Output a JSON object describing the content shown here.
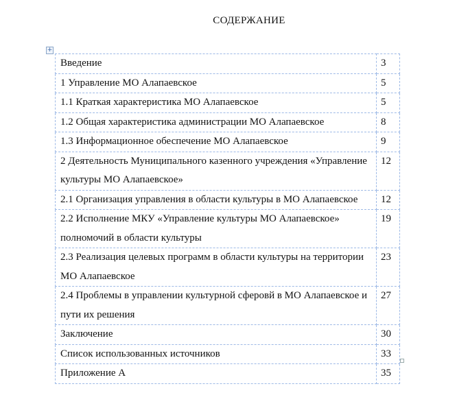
{
  "title": "СОДЕРЖАНИЕ",
  "toc": [
    {
      "text": "Введение",
      "page": "3"
    },
    {
      "text": "1 Управление МО Алапаевское",
      "page": "5"
    },
    {
      "text": "1.1 Краткая характеристика МО Алапаевское",
      "page": "5"
    },
    {
      "text": "1.2  Общая характеристика администрации МО Алапаевское",
      "page": "8"
    },
    {
      "text": "1.3 Информационное обеспечение МО Алапаевское",
      "page": "9"
    },
    {
      "text": "2  Деятельность Муниципального казенного учреждения «Управление культуры МО Алапаевское»",
      "page": "12"
    },
    {
      "text": "2.1 Организация управления в области культуры в МО Алапаевское",
      "page": "12"
    },
    {
      "text": "2.2 Исполнение МКУ «Управление культуры МО Алапаевское» полномочий в области культуры",
      "page": "19"
    },
    {
      "text": "2.3 Реализация целевых программ в области культуры на территории МО Алапаевское",
      "page": "23"
    },
    {
      "text": "2.4 Проблемы в управлении культурной сферовй в МО Алапаевское и пути их решения",
      "page": "27"
    },
    {
      "text": "Заключение",
      "page": "30"
    },
    {
      "text": "Список использованных источников",
      "page": "33"
    },
    {
      "text": "Приложение А",
      "page": "35"
    }
  ]
}
